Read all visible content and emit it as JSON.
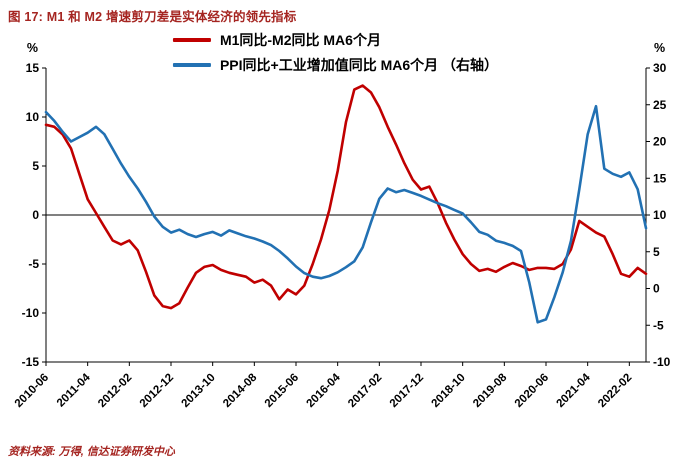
{
  "title": "图 17: M1 和 M2 增速剪刀差是实体经济的领先指标",
  "source_note": "资料来源: 万得, 信达证券研发中心",
  "colors": {
    "red_series": "#c00000",
    "blue_series": "#2271b3",
    "title": "#a52521",
    "source": "#a52521",
    "axis": "#000000"
  },
  "legend": [
    {
      "id": "m1-m2-spread",
      "label": "M1同比-M2同比 MA6个月",
      "color": "#c00000"
    },
    {
      "id": "ppi-plus-ip",
      "label": "PPI同比+工业增加值同比 MA6个月 （右轴）",
      "color": "#2271b3"
    }
  ],
  "chart_data": {
    "type": "line",
    "title": "图 17: M1 和 M2 增速剪刀差是实体经济的领先指标",
    "legend_position": "top",
    "grid": false,
    "x_start": "2010-06",
    "x_months_per_point": 2,
    "x_total_months": 144,
    "x_tick_interval_months": 10,
    "x_tick_labels": [
      "2010-06",
      "2011-04",
      "2012-02",
      "2012-12",
      "2013-10",
      "2014-08",
      "2015-06",
      "2016-04",
      "2017-02",
      "2017-12",
      "2018-10",
      "2019-08",
      "2020-06",
      "2021-04",
      "2022-02"
    ],
    "left_axis": {
      "unit": "%",
      "min": -15,
      "max": 15,
      "ticks": [
        15,
        10,
        5,
        0,
        -5,
        -10,
        -15
      ]
    },
    "right_axis": {
      "unit": "%",
      "min": -10,
      "max": 30,
      "ticks": [
        30,
        25,
        20,
        15,
        10,
        5,
        0,
        -5,
        -10
      ]
    },
    "series": [
      {
        "id": "m1-m2-spread",
        "name": "M1同比-M2同比 MA6个月",
        "axis": "left",
        "color": "#c00000",
        "values": [
          9.2,
          9.0,
          8.2,
          6.8,
          4.2,
          1.6,
          0.2,
          -1.2,
          -2.6,
          -3.0,
          -2.6,
          -3.6,
          -5.8,
          -8.2,
          -9.3,
          -9.5,
          -9.0,
          -7.4,
          -5.9,
          -5.3,
          -5.1,
          -5.6,
          -5.9,
          -6.1,
          -6.3,
          -6.9,
          -6.6,
          -7.2,
          -8.6,
          -7.6,
          -8.1,
          -7.2,
          -5.0,
          -2.5,
          0.5,
          4.5,
          9.5,
          12.8,
          13.2,
          12.5,
          11.0,
          9.0,
          7.2,
          5.3,
          3.6,
          2.6,
          2.9,
          1.2,
          -0.8,
          -2.5,
          -4.0,
          -5.0,
          -5.7,
          -5.5,
          -5.8,
          -5.3,
          -4.9,
          -5.2,
          -5.6,
          -5.4,
          -5.4,
          -5.5,
          -5.0,
          -3.5,
          -0.6,
          -1.2,
          -1.8,
          -2.2,
          -4.0,
          -6.0,
          -6.3,
          -5.4,
          -6.0
        ]
      },
      {
        "id": "ppi-plus-ip",
        "name": "PPI同比+工业增加值同比 MA6个月 （右轴）",
        "axis": "right",
        "color": "#2271b3",
        "values": [
          24.0,
          22.8,
          21.3,
          20.0,
          20.6,
          21.2,
          22.0,
          21.0,
          19.0,
          17.0,
          15.2,
          13.6,
          11.8,
          9.8,
          8.4,
          7.6,
          8.0,
          7.4,
          7.0,
          7.4,
          7.7,
          7.2,
          7.9,
          7.5,
          7.1,
          6.8,
          6.4,
          5.9,
          5.1,
          4.1,
          3.0,
          2.1,
          1.6,
          1.4,
          1.7,
          2.2,
          2.9,
          3.7,
          5.6,
          9.0,
          12.2,
          13.6,
          13.1,
          13.4,
          13.0,
          12.6,
          12.1,
          11.6,
          11.2,
          10.7,
          10.2,
          9.0,
          7.7,
          7.3,
          6.5,
          6.2,
          5.8,
          5.1,
          0.8,
          -4.6,
          -4.2,
          -1.2,
          2.2,
          6.5,
          13.5,
          21.0,
          24.8,
          16.3,
          15.6,
          15.2,
          15.8,
          13.5,
          8.2
        ]
      }
    ]
  }
}
